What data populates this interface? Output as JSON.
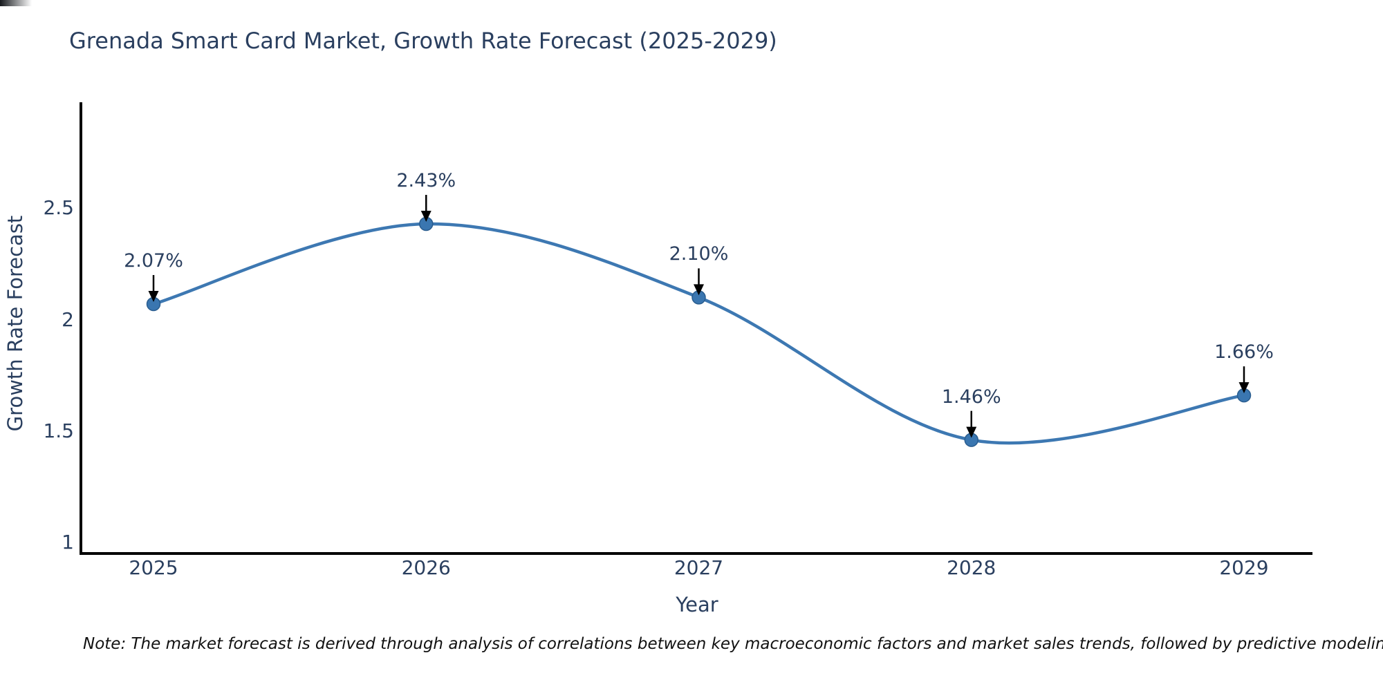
{
  "title": "Grenada Smart Card Market, Growth Rate Forecast (2025-2029)",
  "note": "Note: The market forecast is derived through analysis of correlations between key macroeconomic factors and market sales trends, followed by predictive modeling to project future sales",
  "chart_data": {
    "type": "line",
    "x": [
      2025,
      2026,
      2027,
      2028,
      2029
    ],
    "values": [
      2.07,
      2.43,
      2.1,
      1.46,
      1.66
    ],
    "point_labels": [
      "2.07%",
      "2.43%",
      "2.10%",
      "1.46%",
      "1.66%"
    ],
    "xtick_labels": [
      "2025",
      "2026",
      "2027",
      "2028",
      "2029"
    ],
    "yticks": [
      1,
      1.5,
      2,
      2.5
    ],
    "ytick_labels": [
      "1",
      "1.5",
      "2",
      "2.5"
    ],
    "ylim": [
      0.95,
      2.97
    ],
    "xlabel": "Year",
    "ylabel": "Growth Rate Forecast",
    "title": "Grenada Smart Card Market, Growth Rate Forecast (2025-2029)",
    "line_shape": "spline",
    "grid": false,
    "legend": false,
    "colors": {
      "line": "#3d78b2",
      "marker": "#3a76b0",
      "marker_edge": "#2a5d8f",
      "axis": "#000000",
      "text": "#2a3f5f",
      "arrow": "#000000",
      "note": "#111111"
    }
  }
}
